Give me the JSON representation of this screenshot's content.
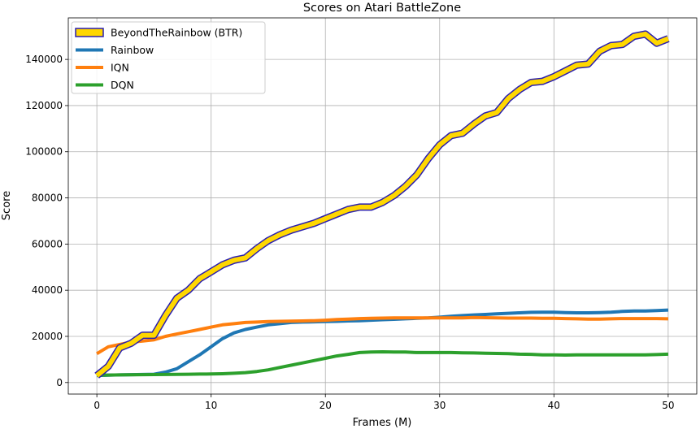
{
  "chart_data": {
    "type": "line",
    "title": "Scores on Atari BattleZone",
    "xlabel": "Frames (M)",
    "ylabel": "Score",
    "xlim": [
      -2.5,
      52.5
    ],
    "ylim": [
      -5000,
      158000
    ],
    "xticks": [
      0,
      10,
      20,
      30,
      40,
      50
    ],
    "yticks": [
      0,
      20000,
      40000,
      60000,
      80000,
      100000,
      120000,
      140000
    ],
    "grid": true,
    "legend_position": "top-left",
    "x": [
      0,
      1,
      2,
      3,
      4,
      5,
      6,
      7,
      8,
      9,
      10,
      11,
      12,
      13,
      14,
      15,
      16,
      17,
      18,
      19,
      20,
      21,
      22,
      23,
      24,
      25,
      26,
      27,
      28,
      29,
      30,
      31,
      32,
      33,
      34,
      35,
      36,
      37,
      38,
      39,
      40,
      41,
      42,
      43,
      44,
      45,
      46,
      47,
      48,
      49,
      50
    ],
    "series": [
      {
        "name": "BeyondTheRainbow (BTR)",
        "color": "#ffd700",
        "edge_color": "#2a1fb0",
        "values": [
          3000,
          7000,
          15000,
          17000,
          20500,
          20500,
          29000,
          36500,
          40000,
          45000,
          48000,
          51000,
          53000,
          54000,
          58000,
          61500,
          64000,
          66000,
          67500,
          69000,
          71000,
          73000,
          75000,
          76000,
          76000,
          78000,
          81000,
          85000,
          90000,
          97000,
          103000,
          107000,
          108000,
          112000,
          115500,
          117000,
          123000,
          127000,
          130000,
          130500,
          132500,
          135000,
          137500,
          138000,
          143500,
          146000,
          146500,
          150000,
          151000,
          147000,
          149000
        ]
      },
      {
        "name": "Rainbow",
        "color": "#1f77b4",
        "values": [
          3000,
          3200,
          3300,
          3400,
          3500,
          3600,
          4500,
          6000,
          9000,
          12000,
          15500,
          19000,
          21500,
          23000,
          24000,
          25000,
          25500,
          26000,
          26200,
          26300,
          26400,
          26500,
          26700,
          26800,
          27000,
          27200,
          27400,
          27600,
          27800,
          28000,
          28300,
          28700,
          29000,
          29300,
          29500,
          29800,
          30000,
          30200,
          30400,
          30500,
          30500,
          30300,
          30200,
          30200,
          30300,
          30500,
          30800,
          31000,
          31000,
          31200,
          31400
        ]
      },
      {
        "name": "IQN",
        "color": "#ff7f0e",
        "values": [
          12500,
          15500,
          16500,
          17500,
          18000,
          18500,
          20000,
          21000,
          22000,
          23000,
          24000,
          25000,
          25500,
          26000,
          26200,
          26400,
          26500,
          26600,
          26700,
          26800,
          27000,
          27300,
          27500,
          27700,
          27800,
          27900,
          28000,
          28000,
          28000,
          28000,
          28000,
          28000,
          28000,
          28200,
          28100,
          28000,
          27900,
          27900,
          27900,
          27800,
          27800,
          27700,
          27600,
          27500,
          27500,
          27600,
          27700,
          27700,
          27700,
          27700,
          27600
        ]
      },
      {
        "name": "DQN",
        "color": "#2ca02c",
        "values": [
          3200,
          3250,
          3300,
          3350,
          3400,
          3450,
          3500,
          3550,
          3600,
          3650,
          3700,
          3800,
          4000,
          4300,
          4800,
          5500,
          6500,
          7500,
          8500,
          9500,
          10500,
          11500,
          12200,
          13000,
          13200,
          13300,
          13200,
          13200,
          13000,
          13000,
          13000,
          13000,
          12900,
          12800,
          12700,
          12600,
          12500,
          12300,
          12200,
          12000,
          12000,
          11900,
          12000,
          12000,
          12000,
          12000,
          12000,
          12000,
          12000,
          12100,
          12300
        ]
      }
    ]
  }
}
